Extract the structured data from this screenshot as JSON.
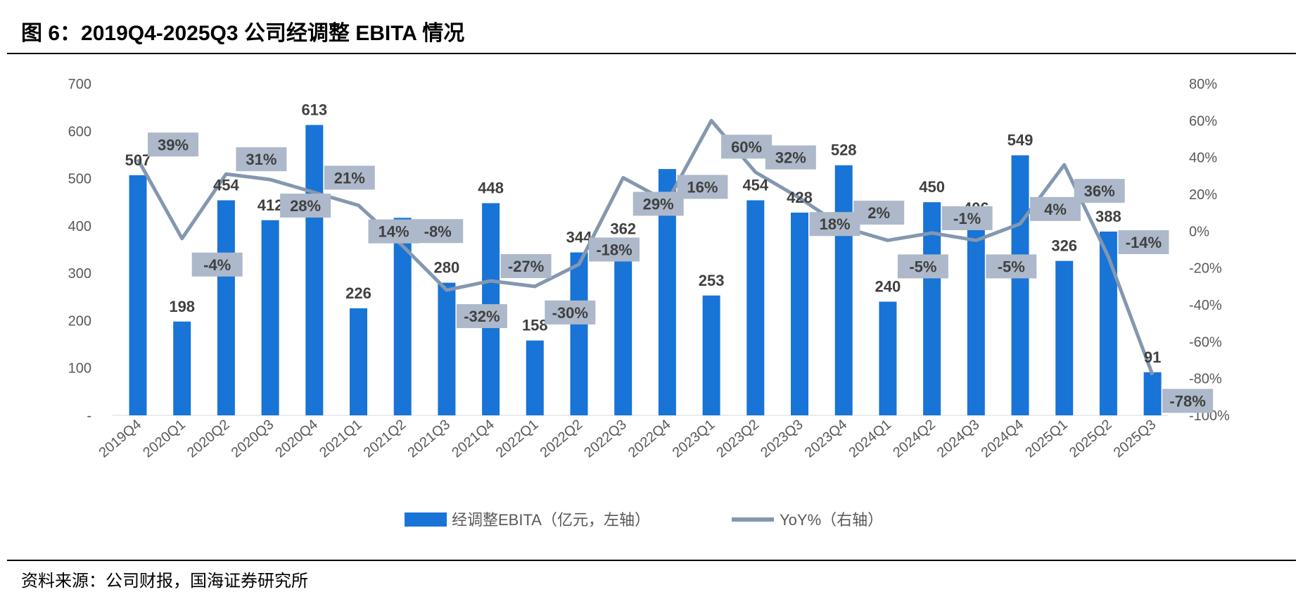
{
  "title": "图 6：2019Q4-2025Q3 公司经调整 EBITA 情况",
  "source": "资料来源：公司财报，国海证券研究所",
  "chart_data": {
    "type": "bar+line",
    "categories": [
      "2019Q4",
      "2020Q1",
      "2020Q2",
      "2020Q3",
      "2020Q4",
      "2021Q1",
      "2021Q2",
      "2021Q3",
      "2021Q4",
      "2022Q1",
      "2022Q2",
      "2022Q3",
      "2022Q4",
      "2023Q1",
      "2023Q2",
      "2023Q3",
      "2023Q4",
      "2024Q1",
      "2024Q2",
      "2024Q3",
      "2024Q4",
      "2025Q1",
      "2025Q2",
      "2025Q3"
    ],
    "series": [
      {
        "name": "经调整EBITA（亿元，左轴）",
        "type": "bar",
        "axis": "left",
        "color": "#1874D6",
        "values": [
          507,
          198,
          454,
          412,
          613,
          226,
          417,
          280,
          448,
          158,
          344,
          362,
          520,
          253,
          454,
          428,
          528,
          240,
          450,
          406,
          549,
          326,
          388,
          91
        ],
        "labels": [
          "507",
          "198",
          "454",
          "412",
          "613",
          "226",
          "",
          "280",
          "448",
          "158",
          "344",
          "362",
          "",
          "253",
          "454",
          "428",
          "528",
          "240",
          "450",
          "406",
          "549",
          "326",
          "388",
          "91"
        ]
      },
      {
        "name": "YoY%（右轴）",
        "type": "line",
        "axis": "right",
        "color": "#8497B0",
        "values": [
          39,
          -4,
          31,
          28,
          21,
          14,
          -8,
          -32,
          -27,
          -30,
          -18,
          29,
          16,
          60,
          32,
          18,
          2,
          -5,
          -1,
          -5,
          4,
          36,
          -14,
          -78
        ],
        "labels": [
          "39%",
          "-4%",
          "31%",
          "28%",
          "21%",
          "14%",
          "-8%",
          "-32%",
          "-27%",
          "-30%",
          "-18%",
          "29%",
          "16%",
          "60%",
          "32%",
          "18%",
          "2%",
          "-5%",
          "-1%",
          "-5%",
          "4%",
          "36%",
          "-14%",
          "-78%"
        ]
      }
    ],
    "left_axis": {
      "ylim": [
        0,
        700
      ],
      "ticks": [
        "-",
        "100",
        "200",
        "300",
        "400",
        "500",
        "600",
        "700"
      ]
    },
    "right_axis": {
      "ylim": [
        -100,
        80
      ],
      "ticks": [
        "-100%",
        "-80%",
        "-60%",
        "-40%",
        "-20%",
        "0%",
        "20%",
        "40%",
        "60%",
        "80%"
      ]
    },
    "legend": "bottom",
    "grid": false
  }
}
